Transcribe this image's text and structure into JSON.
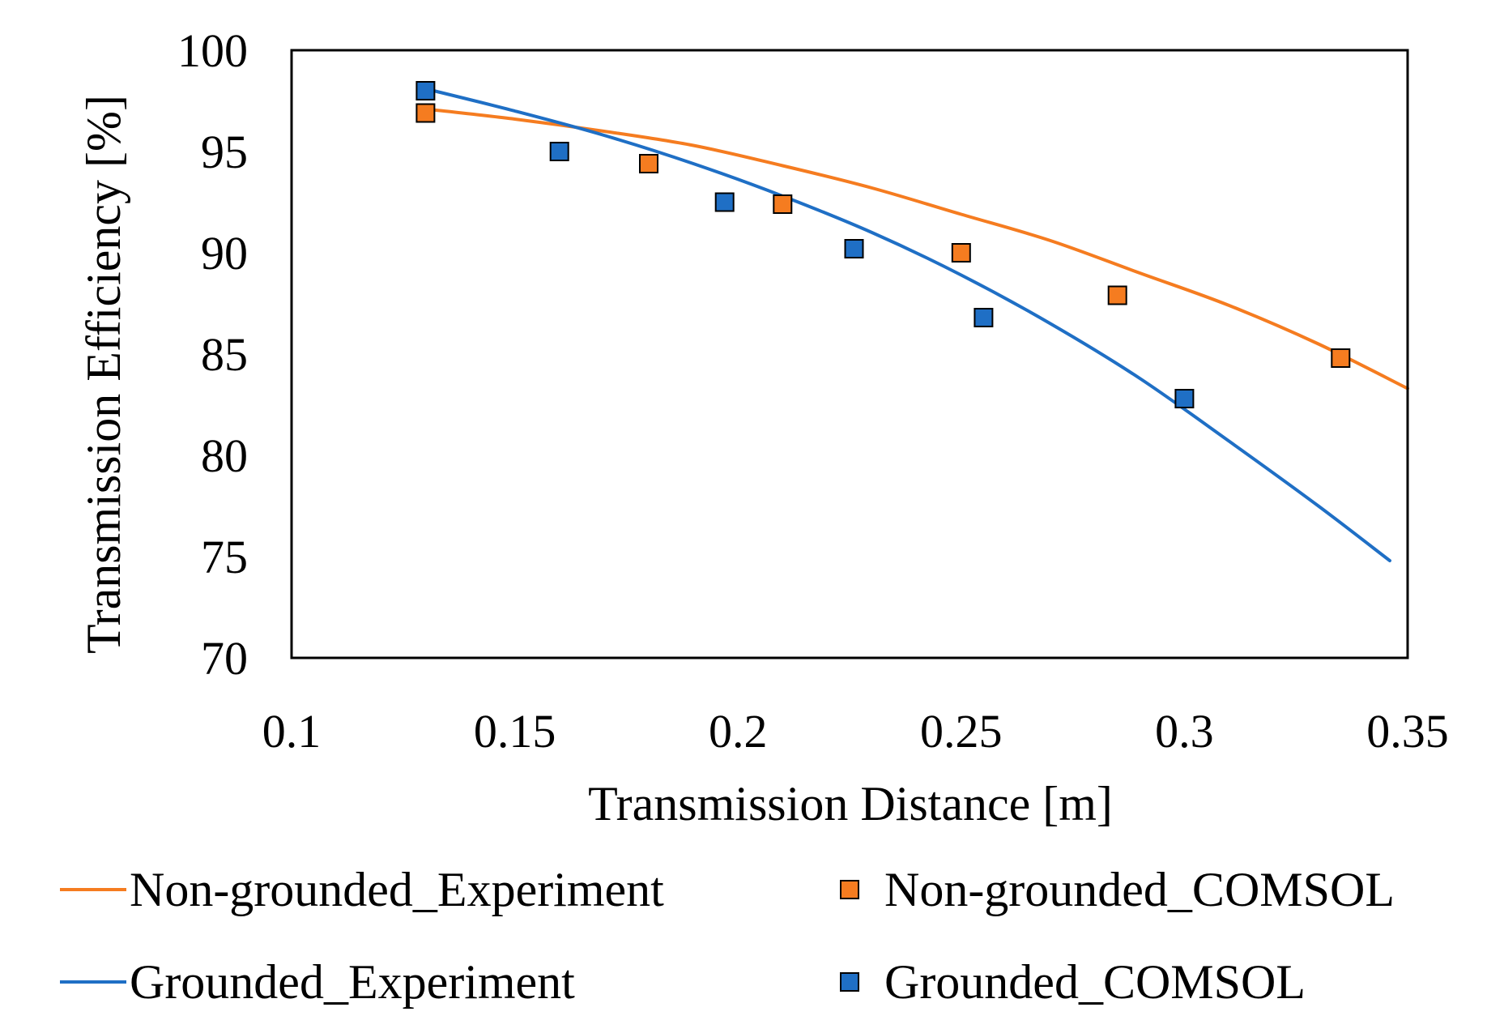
{
  "chart_data": {
    "type": "scatter",
    "xlabel": "Transmission Distance [m]",
    "ylabel": "Transmission Efficiency [%]",
    "xlim": [
      0.1,
      0.35
    ],
    "ylim": [
      70,
      100
    ],
    "x_ticks": [
      0.1,
      0.15,
      0.2,
      0.25,
      0.3,
      0.35
    ],
    "x_tick_labels": [
      "0.1",
      "0.15",
      "0.2",
      "0.25",
      "0.3",
      "0.35"
    ],
    "y_ticks": [
      70,
      75,
      80,
      85,
      90,
      95,
      100
    ],
    "y_tick_labels": [
      "70",
      "75",
      "80",
      "85",
      "90",
      "95",
      "100"
    ],
    "grid": false,
    "legend_position": "bottom",
    "series": [
      {
        "name": "Non-grounded_Experiment",
        "kind": "line",
        "color": "#F57C20",
        "x": [
          0.13,
          0.15,
          0.17,
          0.19,
          0.21,
          0.23,
          0.25,
          0.27,
          0.29,
          0.31,
          0.33,
          0.35
        ],
        "y": [
          97.1,
          96.6,
          96.0,
          95.3,
          94.3,
          93.2,
          91.9,
          90.6,
          89.0,
          87.4,
          85.5,
          83.3
        ]
      },
      {
        "name": "Non-grounded_COMSOL",
        "kind": "marker",
        "color": "#F57C20",
        "x": [
          0.13,
          0.18,
          0.21,
          0.25,
          0.285,
          0.335
        ],
        "y": [
          96.9,
          94.4,
          92.4,
          90.0,
          87.9,
          84.8
        ]
      },
      {
        "name": "Grounded_Experiment",
        "kind": "line",
        "color": "#1F6FC5",
        "x": [
          0.13,
          0.15,
          0.17,
          0.19,
          0.21,
          0.23,
          0.25,
          0.27,
          0.29,
          0.31,
          0.33,
          0.346
        ],
        "y": [
          98.1,
          97.0,
          95.8,
          94.4,
          92.8,
          91.0,
          88.9,
          86.5,
          83.8,
          80.7,
          77.5,
          74.8
        ]
      },
      {
        "name": "Grounded_COMSOL",
        "kind": "marker",
        "color": "#1F6FC5",
        "x": [
          0.13,
          0.16,
          0.197,
          0.226,
          0.255,
          0.3
        ],
        "y": [
          98.0,
          95.0,
          92.5,
          90.2,
          86.8,
          82.8
        ]
      }
    ]
  }
}
